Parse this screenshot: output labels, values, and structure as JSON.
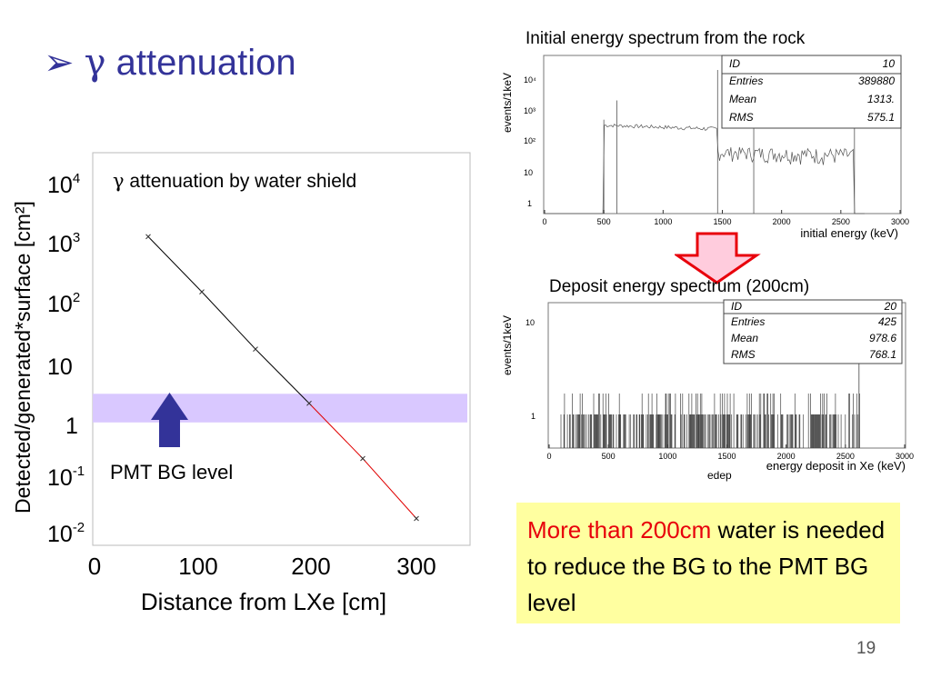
{
  "slide": {
    "title_bullet": "➢",
    "title_greek": "γ",
    "title_text": "attenuation",
    "page_number": "19",
    "conclusion": {
      "highlight": "More than 200cm",
      "rest": " water is needed to reduce the BG to the PMT BG level"
    },
    "arrow_label": "PMT BG level",
    "colors": {
      "title": "#333399",
      "highlight_text": "#e8000b",
      "note_bg": "#ffffa0",
      "band": "#d9c8ff",
      "arrow": "#333399"
    }
  },
  "chart_data": [
    {
      "type": "line",
      "title_greek": "γ",
      "title": "attenuation by water shield",
      "xlabel": "Distance from LXe [cm]",
      "ylabel": "Detected/generated*surface [cm²]",
      "x": [
        50,
        100,
        150,
        200,
        250,
        300
      ],
      "y": [
        1500,
        180,
        20,
        2.5,
        0.3,
        0.03
      ],
      "segment_colors": [
        "#000000",
        "#e00000"
      ],
      "xlim": [
        0,
        350
      ],
      "ylim_log10": [
        -2.3,
        4.4
      ],
      "log_y": true,
      "xticks": [
        "0",
        "100",
        "200",
        "300"
      ],
      "yticks": [
        {
          "base": "10",
          "exp": "4"
        },
        {
          "base": "10",
          "exp": "3"
        },
        {
          "base": "10",
          "exp": "2"
        },
        {
          "base": "10",
          "exp": ""
        },
        {
          "base": "1",
          "exp": ""
        },
        {
          "base": "10",
          "exp": "-1"
        },
        {
          "base": "10",
          "exp": "-2"
        }
      ],
      "band_range": [
        1.2,
        3.6
      ]
    },
    {
      "type": "histogram",
      "title": "Initial energy spectrum from the rock",
      "xlabel": "initial energy (keV)",
      "ylabel": "events/1keV",
      "xlim": [
        0,
        3000
      ],
      "log_y": true,
      "xticks": [
        "0",
        "500",
        "1000",
        "1500",
        "2000",
        "2500",
        "3000"
      ],
      "yticks": [
        "1",
        "10",
        "10²",
        "10³",
        "10⁴"
      ],
      "stats": {
        "ID": "10",
        "Entries": "389880",
        "Mean": "1313.",
        "RMS": "575.1"
      },
      "peaks_keV": [
        500,
        610,
        1460,
        1765,
        2615
      ]
    },
    {
      "type": "histogram",
      "title": "Deposit energy spectrum (200cm)",
      "xlabel": "energy deposit in Xe (keV)",
      "histogram_name": "edep",
      "ylabel": "events/1keV",
      "xlim": [
        0,
        3000
      ],
      "log_y": true,
      "xticks": [
        "0",
        "500",
        "1000",
        "1500",
        "2000",
        "2500",
        "3000"
      ],
      "yticks": [
        "1",
        "10"
      ],
      "stats": {
        "ID": "20",
        "Entries": "425",
        "Mean": "978.6",
        "RMS": "768.1"
      }
    }
  ]
}
